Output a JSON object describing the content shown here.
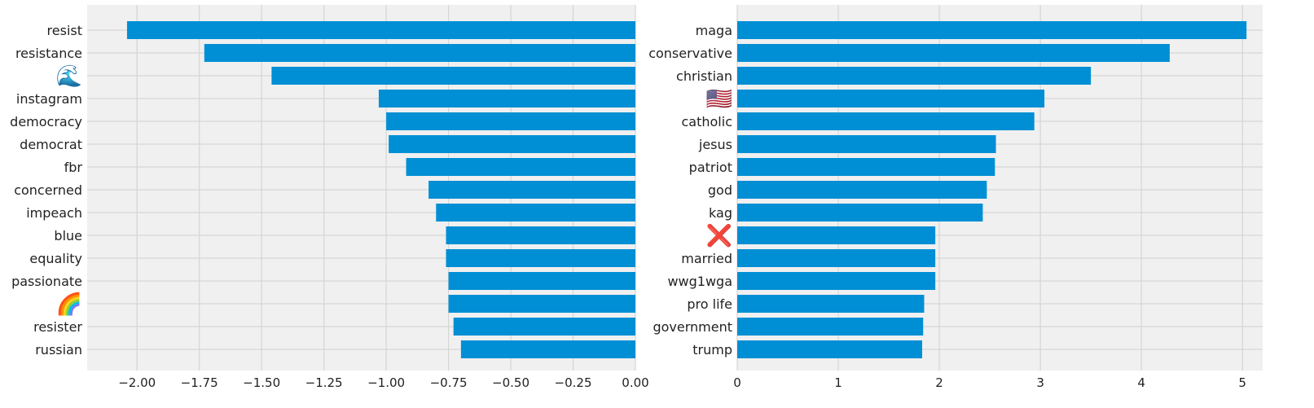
{
  "chart_data": [
    {
      "type": "bar",
      "orientation": "horizontal",
      "categories": [
        "resist",
        "resistance",
        "🌊",
        "instagram",
        "democracy",
        "democrat",
        "fbr",
        "concerned",
        "impeach",
        "blue",
        "equality",
        "passionate",
        "🌈",
        "resister",
        "russian"
      ],
      "values": [
        -2.04,
        -1.73,
        -1.46,
        -1.03,
        -1.0,
        -0.99,
        -0.92,
        -0.83,
        -0.8,
        -0.76,
        -0.76,
        -0.75,
        -0.75,
        -0.73,
        -0.7
      ],
      "xlim": [
        -2.2,
        0.0
      ],
      "xticks": [
        -2.0,
        -1.75,
        -1.5,
        -1.25,
        -1.0,
        -0.75,
        -0.5,
        -0.25,
        0.0
      ],
      "xtick_labels": [
        "−2.00",
        "−1.75",
        "−1.50",
        "−1.25",
        "−1.00",
        "−0.75",
        "−0.50",
        "−0.25",
        "0.00"
      ],
      "grid": true,
      "color": "#008fd5",
      "background": "#f0f0f0",
      "grid_color": "#d5d5d5"
    },
    {
      "type": "bar",
      "orientation": "horizontal",
      "categories": [
        "maga",
        "conservative",
        "christian",
        "🇺🇸",
        "catholic",
        "jesus",
        "patriot",
        "god",
        "kag",
        "❌",
        "married",
        "wwg1wga",
        "pro life",
        "government",
        "trump"
      ],
      "values": [
        5.04,
        4.28,
        3.5,
        3.04,
        2.94,
        2.56,
        2.55,
        2.47,
        2.43,
        1.96,
        1.96,
        1.96,
        1.85,
        1.84,
        1.83
      ],
      "xlim": [
        0,
        5.2
      ],
      "xticks": [
        0,
        1,
        2,
        3,
        4,
        5
      ],
      "xtick_labels": [
        "0",
        "1",
        "2",
        "3",
        "4",
        "5"
      ],
      "grid": true,
      "color": "#008fd5",
      "background": "#f0f0f0",
      "grid_color": "#d5d5d5"
    }
  ]
}
